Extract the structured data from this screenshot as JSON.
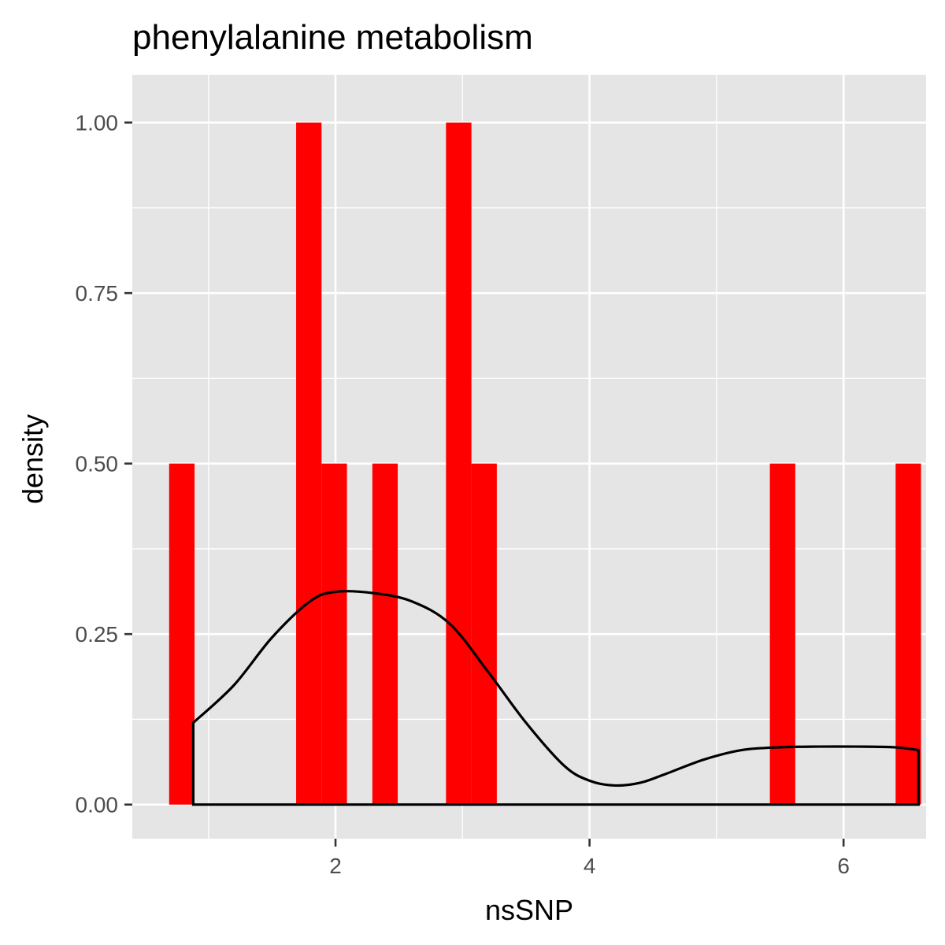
{
  "chart_data": {
    "type": "histogram",
    "title": "phenylalanine metabolism",
    "xlabel": "nsSNP",
    "ylabel": "density",
    "xlim": [
      0.4,
      6.65
    ],
    "ylim": [
      -0.05,
      1.07
    ],
    "x_ticks": [
      {
        "value": 2,
        "label": "2"
      },
      {
        "value": 4,
        "label": "4"
      },
      {
        "value": 6,
        "label": "6"
      }
    ],
    "y_ticks": [
      {
        "value": 0,
        "label": "0.00"
      },
      {
        "value": 0.25,
        "label": "0.25"
      },
      {
        "value": 0.5,
        "label": "0.50"
      },
      {
        "value": 0.75,
        "label": "0.75"
      },
      {
        "value": 1.0,
        "label": "1.00"
      }
    ],
    "x_minor_grid": [
      1,
      3,
      5
    ],
    "y_minor_grid": [
      0.125,
      0.375,
      0.625,
      0.875
    ],
    "bins": [
      {
        "x0": 0.69,
        "x1": 0.89,
        "density": 0.5
      },
      {
        "x0": 1.69,
        "x1": 1.89,
        "density": 1.0
      },
      {
        "x0": 1.89,
        "x1": 2.09,
        "density": 0.5
      },
      {
        "x0": 2.29,
        "x1": 2.49,
        "density": 0.5
      },
      {
        "x0": 2.87,
        "x1": 3.07,
        "density": 1.0
      },
      {
        "x0": 3.07,
        "x1": 3.27,
        "density": 0.5
      },
      {
        "x0": 5.42,
        "x1": 5.62,
        "density": 0.5
      },
      {
        "x0": 6.41,
        "x1": 6.61,
        "density": 0.5
      }
    ],
    "density_curve": {
      "x": [
        0.88,
        1.2,
        1.5,
        1.8,
        2.0,
        2.3,
        2.6,
        2.9,
        3.2,
        3.5,
        3.8,
        4.0,
        4.2,
        4.4,
        4.6,
        4.9,
        5.2,
        5.5,
        5.8,
        6.1,
        6.4,
        6.59
      ],
      "y": [
        0.12,
        0.175,
        0.245,
        0.298,
        0.312,
        0.31,
        0.298,
        0.265,
        0.195,
        0.12,
        0.057,
        0.035,
        0.028,
        0.032,
        0.045,
        0.066,
        0.08,
        0.084,
        0.085,
        0.085,
        0.084,
        0.08
      ]
    },
    "colors": {
      "panel_background": "#e5e5e5",
      "grid": "#ffffff",
      "bars": "#fe0000",
      "density_line": "#000000",
      "tick_label": "#4d4d4d",
      "axis_tick": "#333333"
    },
    "grid": true
  }
}
